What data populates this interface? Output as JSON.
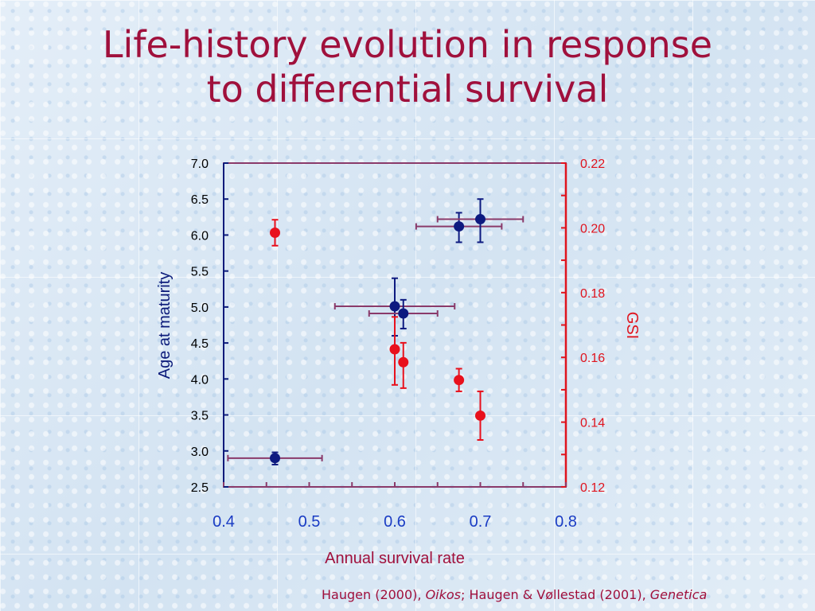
{
  "title": {
    "line1": "Life-history evolution in response",
    "line2": "to differential survival"
  },
  "citation": {
    "part1": "Haugen (2000), ",
    "journal1": "Oikos",
    "part2": "; Haugen & Vøllestad (2001), ",
    "journal2": "Genetica"
  },
  "colors": {
    "title": "#a0103c",
    "left_axis": "#0b1a7a",
    "right_axis": "#e0141e",
    "frame": "#8a3a6a",
    "x_ticks": "#1a3cc4",
    "age_series": "#0d1a80",
    "gsi_series": "#e8101c",
    "xerr": "#8a3a6a"
  },
  "chart_data": {
    "type": "scatter",
    "xlabel": "Annual survival rate",
    "ylabel_left": "Age at maturity",
    "ylabel_right": "GSI",
    "xlim": [
      0.4,
      0.8
    ],
    "ylim_left": [
      2.5,
      7.0
    ],
    "ylim_right": [
      0.12,
      0.22
    ],
    "x_ticks": [
      "0.4",
      "0.5",
      "0.6",
      "0.7",
      "0.8"
    ],
    "y_left_ticks": [
      "2.5",
      "3.0",
      "3.5",
      "4.0",
      "4.5",
      "5.0",
      "5.5",
      "6.0",
      "6.5",
      "7.0"
    ],
    "y_right_ticks": [
      "0.12",
      "0.14",
      "0.16",
      "0.18",
      "0.20",
      "0.22"
    ],
    "grid": false,
    "series": [
      {
        "axis": "left",
        "points": [
          {
            "x": 0.46,
            "y": 2.9,
            "xerr_low": 0.405,
            "xerr_high": 0.515,
            "yerr_low": 2.81,
            "yerr_high": 2.98
          },
          {
            "x": 0.6,
            "y": 5.01,
            "xerr_low": 0.53,
            "xerr_high": 0.67,
            "yerr_low": 4.6,
            "yerr_high": 5.4
          },
          {
            "x": 0.61,
            "y": 4.91,
            "xerr_low": 0.57,
            "xerr_high": 0.65,
            "yerr_low": 4.7,
            "yerr_high": 5.1
          },
          {
            "x": 0.675,
            "y": 6.12,
            "xerr_low": 0.625,
            "xerr_high": 0.725,
            "yerr_low": 5.9,
            "yerr_high": 6.31
          },
          {
            "x": 0.7,
            "y": 6.22,
            "xerr_low": 0.65,
            "xerr_high": 0.75,
            "yerr_low": 5.9,
            "yerr_high": 6.5
          }
        ]
      },
      {
        "axis": "right",
        "points": [
          {
            "x": 0.46,
            "y": 0.1985,
            "yerr_low": 0.1945,
            "yerr_high": 0.2025
          },
          {
            "x": 0.6,
            "y": 0.1625,
            "yerr_low": 0.1515,
            "yerr_high": 0.1725
          },
          {
            "x": 0.61,
            "y": 0.1585,
            "yerr_low": 0.1505,
            "yerr_high": 0.1645
          },
          {
            "x": 0.675,
            "y": 0.153,
            "yerr_low": 0.1495,
            "yerr_high": 0.1565
          },
          {
            "x": 0.7,
            "y": 0.142,
            "yerr_low": 0.1345,
            "yerr_high": 0.1495
          }
        ]
      }
    ]
  }
}
